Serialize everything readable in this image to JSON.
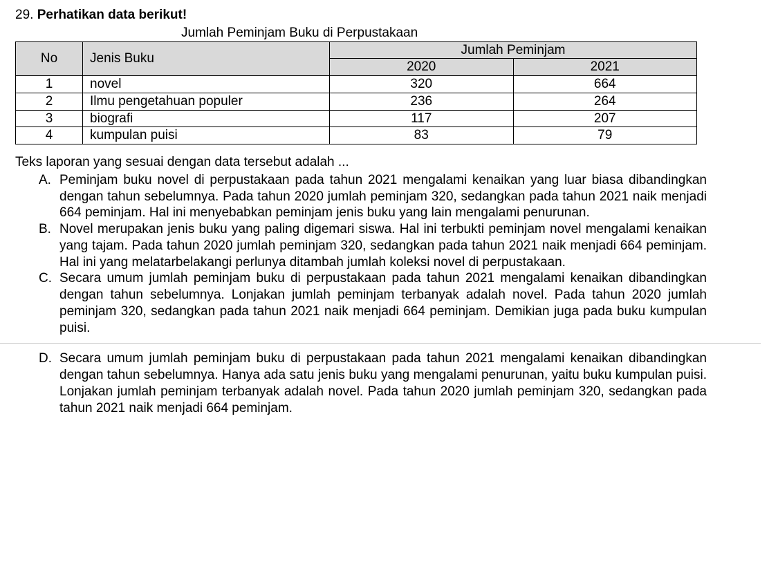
{
  "question": {
    "number": "29.",
    "prompt_bold": "Perhatikan data berikut!",
    "table_caption": "Jumlah Peminjam Buku di Perpustakaan",
    "table": {
      "header_no": "No",
      "header_jenis": "Jenis Buku",
      "header_jumlah": "Jumlah Peminjam",
      "year_a": "2020",
      "year_b": "2021",
      "rows": [
        {
          "no": "1",
          "jenis": "novel",
          "y2020": "320",
          "y2021": "664"
        },
        {
          "no": "2",
          "jenis": "Ilmu pengetahuan populer",
          "y2020": "236",
          "y2021": "264"
        },
        {
          "no": "3",
          "jenis": "biografi",
          "y2020": "117",
          "y2021": "207"
        },
        {
          "no": "4",
          "jenis": "kumpulan puisi",
          "y2020": "83",
          "y2021": "79"
        }
      ]
    },
    "stem": "Teks laporan yang sesuai dengan data tersebut adalah ...",
    "options": {
      "A": {
        "letter": "A.",
        "text": "Peminjam buku novel di perpustakaan pada tahun 2021 mengalami kenaikan yang luar biasa dibandingkan dengan tahun sebelumnya. Pada tahun 2020 jumlah peminjam 320, sedangkan pada tahun 2021 naik menjadi 664 peminjam. Hal ini menyebabkan peminjam jenis buku yang lain mengalami penurunan."
      },
      "B": {
        "letter": "B.",
        "text": "Novel merupakan jenis buku yang paling digemari siswa. Hal ini terbukti peminjam novel mengalami kenaikan yang tajam. Pada tahun 2020 jumlah peminjam 320, sedangkan pada tahun 2021 naik menjadi 664 peminjam. Hal ini yang melatarbelakangi perlunya ditambah jumlah koleksi novel di perpustakaan."
      },
      "C": {
        "letter": "C.",
        "text": "Secara umum jumlah peminjam buku di perpustakaan pada tahun 2021 mengalami kenaikan dibandingkan dengan tahun sebelumnya. Lonjakan jumlah peminjam terbanyak adalah novel. Pada tahun 2020 jumlah peminjam 320, sedangkan pada tahun 2021 naik menjadi 664 peminjam. Demikian juga pada buku kumpulan puisi."
      },
      "D": {
        "letter": "D.",
        "text": "Secara umum jumlah peminjam buku di perpustakaan pada tahun 2021 mengalami kenaikan dibandingkan dengan tahun sebelumnya. Hanya ada satu jenis buku yang mengalami penurunan, yaitu buku kumpulan puisi. Lonjakan jumlah peminjam terbanyak adalah novel. Pada tahun 2020 jumlah peminjam 320, sedangkan pada tahun 2021 naik menjadi 664 peminjam."
      }
    }
  },
  "style": {
    "header_bg": "#d9d9d9",
    "border_color": "#000000",
    "font_family": "Arial",
    "base_fontsize_pt": 14,
    "separator_color": "#c9c9c9"
  }
}
